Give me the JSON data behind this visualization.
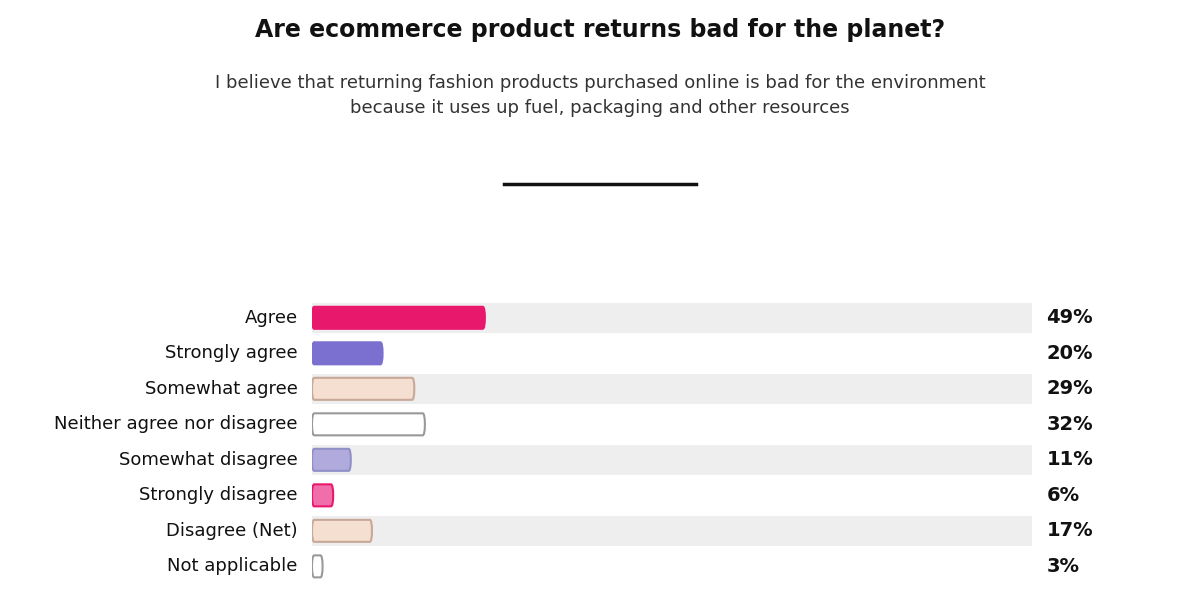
{
  "title": "Are ecommerce product returns bad for the planet?",
  "subtitle": "I believe that returning fashion products purchased online is bad for the environment\nbecause it uses up fuel, packaging and other resources",
  "categories": [
    "Agree",
    "Strongly agree",
    "Somewhat agree",
    "Neither agree nor disagree",
    "Somewhat disagree",
    "Strongly disagree",
    "Disagree (Net)",
    "Not applicable"
  ],
  "values": [
    49,
    20,
    29,
    32,
    11,
    6,
    17,
    3
  ],
  "labels": [
    "49%",
    "20%",
    "29%",
    "32%",
    "11%",
    "6%",
    "17%",
    "3%"
  ],
  "bar_colors": [
    "#E8186D",
    "#7B6FD0",
    "#F5DFD0",
    "#FFFFFF",
    "#B0AADD",
    "#F06FAA",
    "#F5DFD0",
    "#FFFFFF"
  ],
  "bar_edge_colors": [
    "#E8186D",
    "#7B6FD0",
    "#C8A898",
    "#999999",
    "#9090C8",
    "#E8186D",
    "#C8A898",
    "#999999"
  ],
  "bg_colors": [
    "#EEEEEE",
    "#FFFFFF",
    "#EEEEEE",
    "#FFFFFF",
    "#EEEEEE",
    "#FFFFFF",
    "#EEEEEE",
    "#FFFFFF"
  ],
  "max_val": 100,
  "bar_scale": 0.49,
  "title_fontsize": 17,
  "subtitle_fontsize": 13,
  "label_fontsize": 13,
  "value_fontsize": 14
}
